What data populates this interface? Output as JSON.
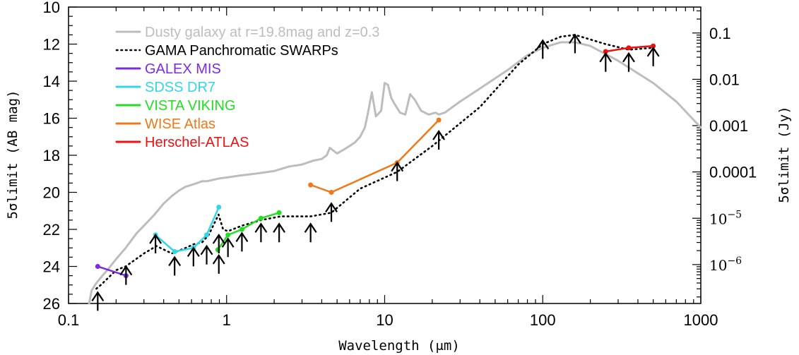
{
  "chart_data": {
    "type": "line",
    "xlabel": "Wavelength (μm)",
    "ylabel_left": "5σlimit (AB mag)",
    "ylabel_right": "5σlimit (Jy)",
    "x_scale": "log",
    "xlim": [
      0.1,
      1000
    ],
    "ylim": [
      26,
      10
    ],
    "y_inverted": true,
    "x_ticks": [
      0.1,
      1,
      10,
      100,
      1000
    ],
    "x_tick_labels": [
      "0.1",
      "1",
      "10",
      "100",
      "1000"
    ],
    "y_ticks": [
      10,
      12,
      14,
      16,
      18,
      20,
      22,
      24,
      26
    ],
    "y_tick_labels": [
      "10",
      "12",
      "14",
      "16",
      "18",
      "20",
      "22",
      "24",
      "26"
    ],
    "right_ticks": [
      {
        "jy": 0.1,
        "label": "0.1"
      },
      {
        "jy": 0.01,
        "label": "0.01"
      },
      {
        "jy": 0.001,
        "label": "0.001"
      },
      {
        "jy": 0.0001,
        "label": "0.0001"
      },
      {
        "jy": 1e-05,
        "label": "10",
        "exp": "−5"
      },
      {
        "jy": 1e-06,
        "label": "10",
        "exp": "−6"
      }
    ],
    "grid": false,
    "legend_position": "top-left",
    "legend": [
      {
        "name": "Dusty galaxy at r=19.8mag and z=0.3",
        "color": "#bdbdbd",
        "style": "solid"
      },
      {
        "name": "GAMA Panchromatic SWARPs",
        "color": "#000000",
        "style": "dotted"
      },
      {
        "name": "GALEX MIS",
        "color": "#7b2be0",
        "style": "solid"
      },
      {
        "name": "SDSS DR7",
        "color": "#33d6e6",
        "style": "solid"
      },
      {
        "name": "VISTA VIKING",
        "color": "#22dd22",
        "style": "solid"
      },
      {
        "name": "WISE Atlas",
        "color": "#f07818",
        "style": "solid"
      },
      {
        "name": "Herschel-ATLAS",
        "color": "#ee1111",
        "style": "solid"
      }
    ],
    "series": [
      {
        "name": "Dusty galaxy at r=19.8mag and z=0.3",
        "color": "#bdbdbd",
        "x": [
          0.135,
          0.14,
          0.15,
          0.16,
          0.18,
          0.2,
          0.23,
          0.27,
          0.3,
          0.35,
          0.4,
          0.45,
          0.5,
          0.55,
          0.6,
          0.65,
          0.7,
          0.75,
          0.8,
          0.9,
          1.0,
          1.2,
          1.5,
          2.0,
          2.5,
          3.0,
          3.5,
          4.0,
          4.3,
          4.5,
          5.0,
          5.5,
          6.0,
          6.5,
          7.0,
          7.5,
          7.8,
          8.3,
          8.8,
          9.5,
          10.0,
          10.5,
          11.0,
          11.5,
          12.5,
          13.5,
          14.5,
          15.5,
          17.0,
          19.0,
          21.0,
          22.0,
          24.0,
          30,
          40,
          60,
          80,
          100,
          130,
          160,
          200,
          300,
          500,
          700,
          1000
        ],
        "y": [
          26.0,
          25.3,
          24.9,
          24.6,
          24.1,
          23.6,
          23.0,
          22.2,
          21.8,
          21.2,
          20.6,
          20.2,
          19.9,
          19.7,
          19.6,
          19.5,
          19.4,
          19.4,
          19.35,
          19.25,
          19.2,
          19.1,
          19.0,
          18.85,
          18.6,
          18.5,
          18.3,
          18.2,
          18.0,
          17.6,
          17.9,
          17.7,
          17.5,
          17.3,
          17.0,
          16.5,
          15.8,
          14.6,
          15.9,
          15.6,
          14.1,
          14.2,
          14.9,
          15.2,
          15.7,
          15.8,
          14.7,
          15.0,
          15.6,
          15.8,
          15.7,
          15.8,
          15.7,
          15.1,
          14.4,
          13.4,
          12.6,
          12.2,
          11.9,
          11.9,
          12.1,
          12.9,
          14.1,
          15.1,
          16.5
        ]
      },
      {
        "name": "GAMA Panchromatic SWARPs",
        "color": "#000000",
        "x": [
          0.15,
          0.16,
          0.2,
          0.23,
          0.3,
          0.36,
          0.45,
          0.55,
          0.62,
          0.7,
          0.77,
          0.89,
          0.95,
          1.02,
          1.25,
          1.65,
          2.2,
          3.4,
          4.6,
          7,
          12,
          20,
          40,
          70,
          100,
          130,
          160,
          250,
          350,
          500
        ],
        "y": [
          25.2,
          25.0,
          24.2,
          24.0,
          23.3,
          22.9,
          23.3,
          23.0,
          22.8,
          22.7,
          22.3,
          21.2,
          22.0,
          22.1,
          21.8,
          21.5,
          21.3,
          21.3,
          21.1,
          19.8,
          18.9,
          17.5,
          15.4,
          13.1,
          12.0,
          11.6,
          11.5,
          12.0,
          12.3,
          12.2
        ]
      },
      {
        "name": "GALEX MIS",
        "color": "#7b2be0",
        "x": [
          0.153,
          0.231
        ],
        "y": [
          24.0,
          24.5
        ]
      },
      {
        "name": "SDSS DR7",
        "color": "#33d6e6",
        "x": [
          0.355,
          0.469,
          0.617,
          0.748,
          0.893
        ],
        "y": [
          22.3,
          23.2,
          23.0,
          22.3,
          20.8
        ]
      },
      {
        "name": "VISTA VIKING",
        "color": "#22dd22",
        "x": [
          0.88,
          1.02,
          1.25,
          1.65,
          2.15
        ],
        "y": [
          23.1,
          22.3,
          22.0,
          21.4,
          21.1
        ]
      },
      {
        "name": "WISE Atlas",
        "color": "#f07818",
        "x": [
          3.4,
          4.6,
          12,
          22
        ],
        "y": [
          19.6,
          20.0,
          18.4,
          16.1
        ]
      },
      {
        "name": "Herschel-ATLAS",
        "color": "#ee1111",
        "x": [
          250,
          350,
          500
        ],
        "y": [
          12.4,
          12.2,
          12.1
        ]
      }
    ],
    "limit_arrows": [
      {
        "x": 0.153,
        "y": 25.9
      },
      {
        "x": 0.231,
        "y": 24.5
      },
      {
        "x": 0.355,
        "y": 22.8
      },
      {
        "x": 0.469,
        "y": 24.0
      },
      {
        "x": 0.617,
        "y": 23.5
      },
      {
        "x": 0.748,
        "y": 23.4
      },
      {
        "x": 0.893,
        "y": 23.9
      },
      {
        "x": 0.893,
        "y": 22.8
      },
      {
        "x": 1.02,
        "y": 23.0
      },
      {
        "x": 1.25,
        "y": 22.7
      },
      {
        "x": 1.65,
        "y": 22.2
      },
      {
        "x": 2.15,
        "y": 22.2
      },
      {
        "x": 3.4,
        "y": 22.2
      },
      {
        "x": 4.6,
        "y": 21.1
      },
      {
        "x": 12,
        "y": 18.9
      },
      {
        "x": 22,
        "y": 17.2
      },
      {
        "x": 100,
        "y": 12.3
      },
      {
        "x": 160,
        "y": 12.0
      },
      {
        "x": 250,
        "y": 13.0
      },
      {
        "x": 350,
        "y": 13.0
      },
      {
        "x": 500,
        "y": 12.7
      }
    ]
  }
}
